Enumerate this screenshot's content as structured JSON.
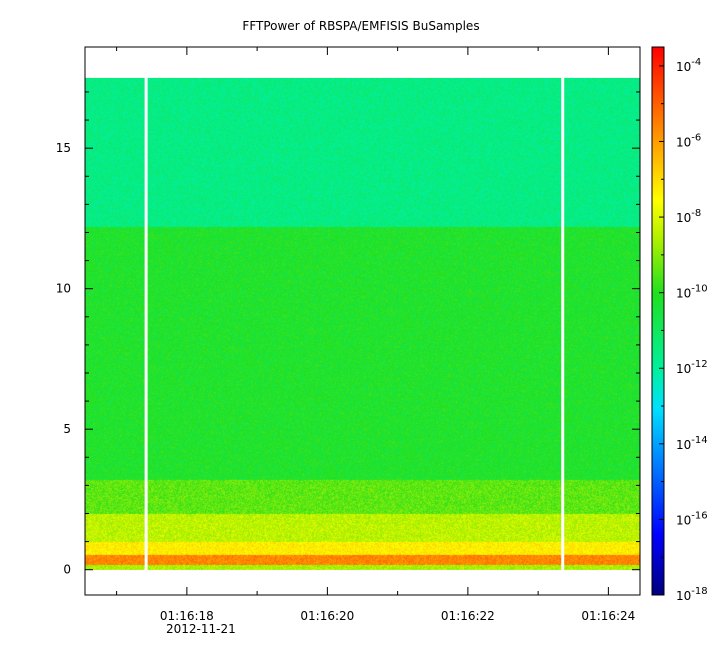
{
  "chart_data": {
    "type": "heatmap",
    "title": "FFTPower of RBSPA/EMFISIS  BuSamples",
    "xlabel": "",
    "ylabel": "",
    "x_ticks": [
      "01:16:18",
      "01:16:20",
      "01:16:22",
      "01:16:24"
    ],
    "x_tick_values": [
      18,
      20,
      22,
      24
    ],
    "x_minor_ticks": [
      17,
      19,
      21,
      23
    ],
    "x_sublabel": "2012-11-21",
    "xlim": [
      16.55,
      24.45
    ],
    "y_ticks": [
      "0",
      "5",
      "10",
      "15"
    ],
    "y_tick_values": [
      0,
      5,
      10,
      15
    ],
    "ylim": [
      -0.9,
      18.6
    ],
    "colorbar": {
      "scale": "log",
      "range_exp": [
        -18,
        -3.5
      ],
      "tick_exponents": [
        -18,
        -16,
        -14,
        -12,
        -10,
        -8,
        -6,
        -4
      ],
      "tick_base": "10"
    },
    "data_extent": {
      "x": [
        16.55,
        24.45
      ],
      "y": [
        0,
        17.5
      ]
    },
    "gaps_x": [
      17.42,
      23.35
    ],
    "bands": [
      {
        "y": [
          0.0,
          0.18
        ],
        "log_power": -8.6
      },
      {
        "y": [
          0.18,
          0.55
        ],
        "log_power": -5.6
      },
      {
        "y": [
          0.55,
          1.0
        ],
        "log_power": -7.3
      },
      {
        "y": [
          1.0,
          2.0
        ],
        "log_power": -8.4
      },
      {
        "y": [
          2.0,
          3.2
        ],
        "log_power": -9.4
      },
      {
        "y": [
          3.2,
          12.2
        ],
        "log_power": -10.2
      },
      {
        "y": [
          12.2,
          17.5
        ],
        "log_power": -11.6
      }
    ],
    "grid": false,
    "legend": "colorbar-right"
  }
}
